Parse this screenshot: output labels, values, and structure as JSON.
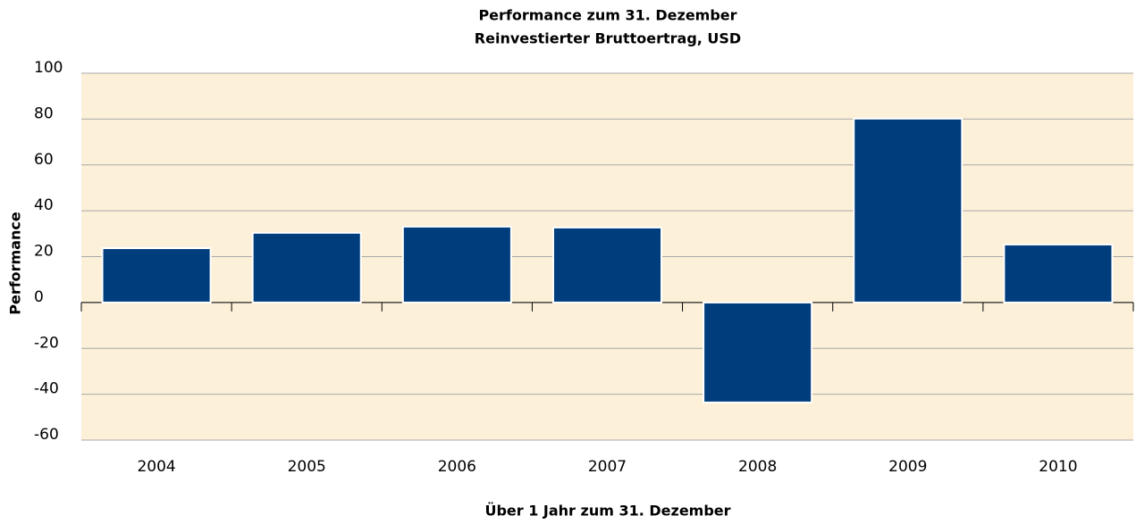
{
  "chart_data": {
    "type": "bar",
    "title": "Performance zum 31. Dezember",
    "subtitle": "Reinvestierter Bruttoertrag, USD",
    "y_label": "Performance",
    "x_label": "Über 1 Jahr zum 31. Dezember",
    "categories": [
      "2004",
      "2005",
      "2006",
      "2007",
      "2008",
      "2009",
      "2010"
    ],
    "values": [
      23.7,
      30.4,
      33.1,
      32.7,
      -43.6,
      80.2,
      25.3
    ],
    "color": "#003d7c",
    "ylim": [
      -60,
      100
    ],
    "yticks": [
      -60,
      -40,
      -20,
      0,
      20,
      40,
      60,
      80,
      100
    ],
    "grid": true
  }
}
